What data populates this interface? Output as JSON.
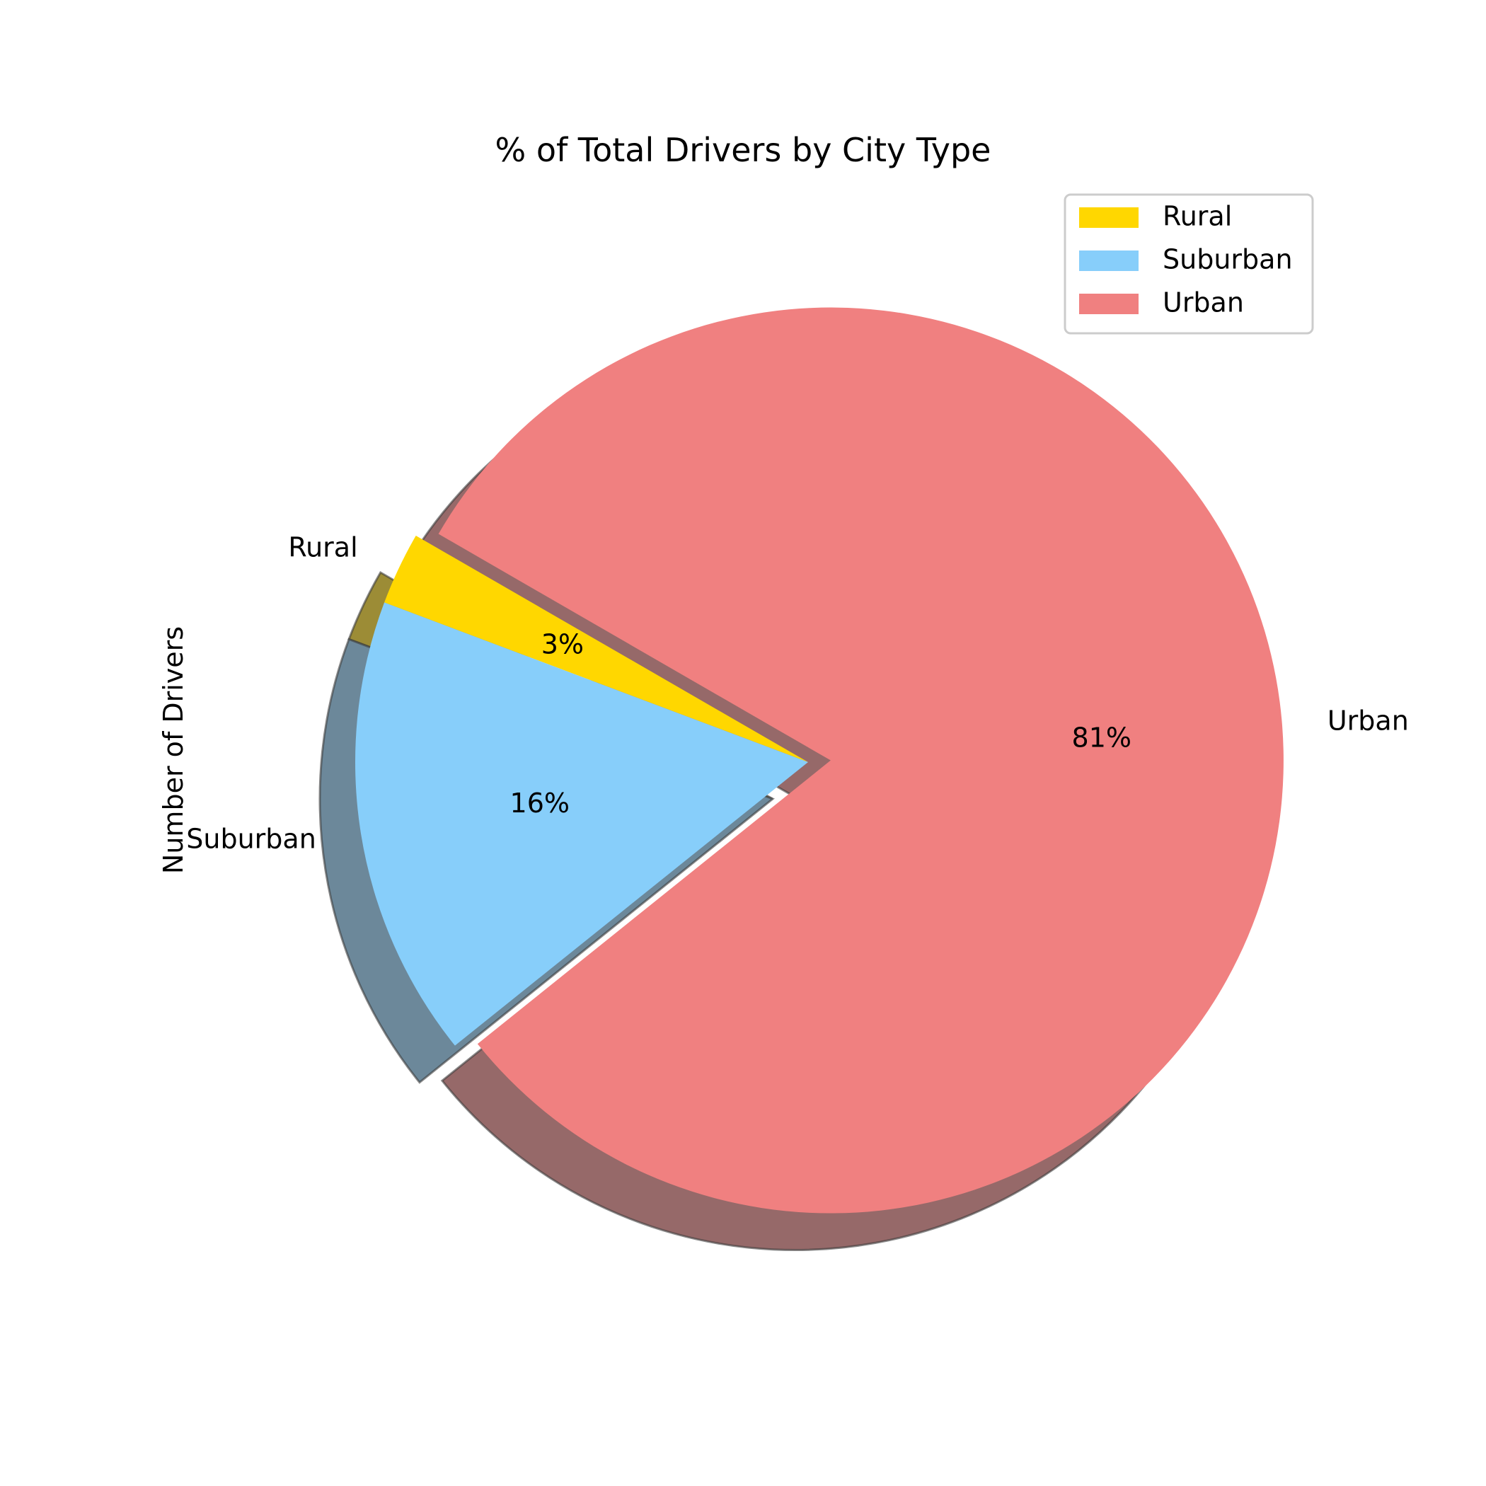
{
  "chart_data": {
    "type": "pie",
    "title": "% of Total Drivers by City Type",
    "ylabel": "Number of Drivers",
    "categories": [
      "Rural",
      "Suburban",
      "Urban"
    ],
    "values": [
      2.6,
      16.5,
      80.9
    ],
    "percent_labels": [
      "3%",
      "16%",
      "81%"
    ],
    "colors": [
      "#FFD700",
      "#87CEFA",
      "#F08080"
    ],
    "explode": [
      0,
      0,
      0.1
    ],
    "startangle_deg": 150,
    "shadow": true,
    "legend": {
      "placement": "top-right",
      "entries": [
        "Rural",
        "Suburban",
        "Urban"
      ]
    }
  }
}
